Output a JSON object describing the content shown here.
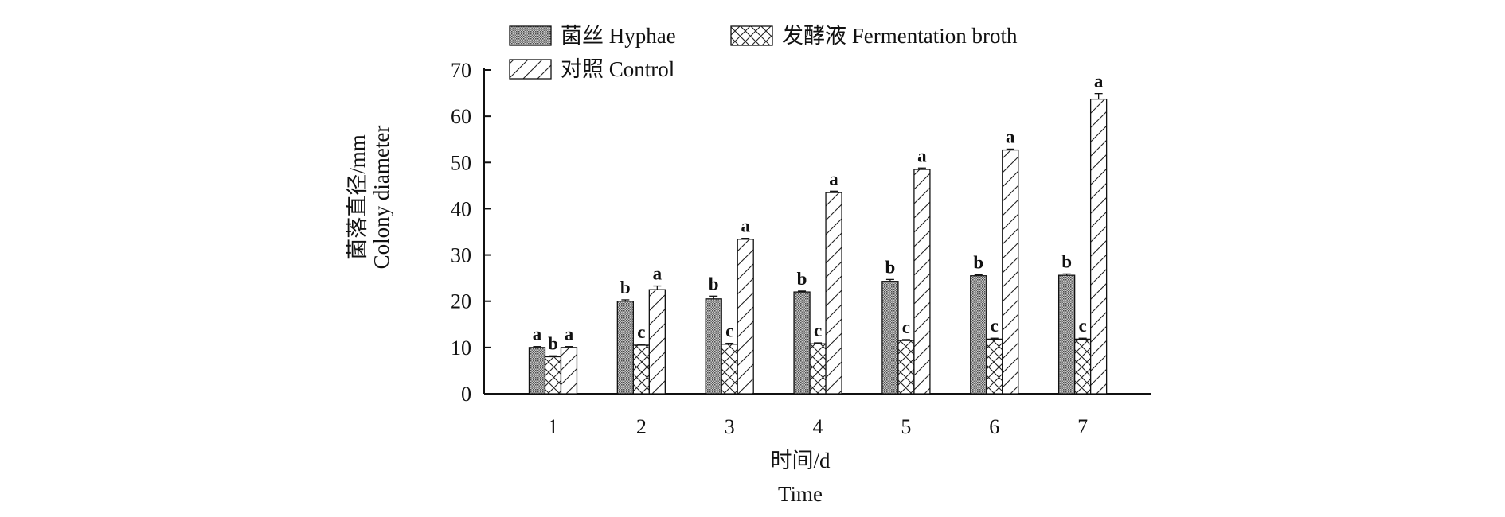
{
  "chart_data": {
    "type": "bar",
    "categories": [
      "1",
      "2",
      "3",
      "4",
      "5",
      "6",
      "7"
    ],
    "series": [
      {
        "name": "菌丝 Hyphae",
        "pattern": "dots",
        "values": [
          10.0,
          20.0,
          20.5,
          22.0,
          24.3,
          25.5,
          25.6
        ],
        "errors": [
          0.2,
          0.3,
          0.6,
          0.2,
          0.4,
          0.2,
          0.3
        ],
        "labels": [
          "a",
          "b",
          "b",
          "b",
          "b",
          "b",
          "b"
        ]
      },
      {
        "name": "发酵液 Fermentation broth",
        "pattern": "crosshatch",
        "values": [
          8.0,
          10.5,
          10.7,
          10.8,
          11.5,
          11.8,
          11.8
        ],
        "errors": [
          0.2,
          0.2,
          0.2,
          0.2,
          0.2,
          0.2,
          0.2
        ],
        "labels": [
          "b",
          "c",
          "c",
          "c",
          "c",
          "c",
          "c"
        ]
      },
      {
        "name": "对照 Control",
        "pattern": "diagonal",
        "values": [
          10.0,
          22.5,
          33.4,
          43.5,
          48.5,
          52.7,
          63.7
        ],
        "errors": [
          0.2,
          0.8,
          0.2,
          0.3,
          0.3,
          0.2,
          1.2
        ],
        "labels": [
          "a",
          "a",
          "a",
          "a",
          "a",
          "a",
          "a"
        ]
      }
    ],
    "xlabel": [
      "时间/d",
      "Time"
    ],
    "ylabel": [
      "菌落直径/mm",
      "Colony diameter"
    ],
    "ylim": [
      0,
      70
    ],
    "yticks": [
      0,
      10,
      20,
      30,
      40,
      50,
      60,
      70
    ],
    "grid": false,
    "legend_position": "top-left"
  }
}
